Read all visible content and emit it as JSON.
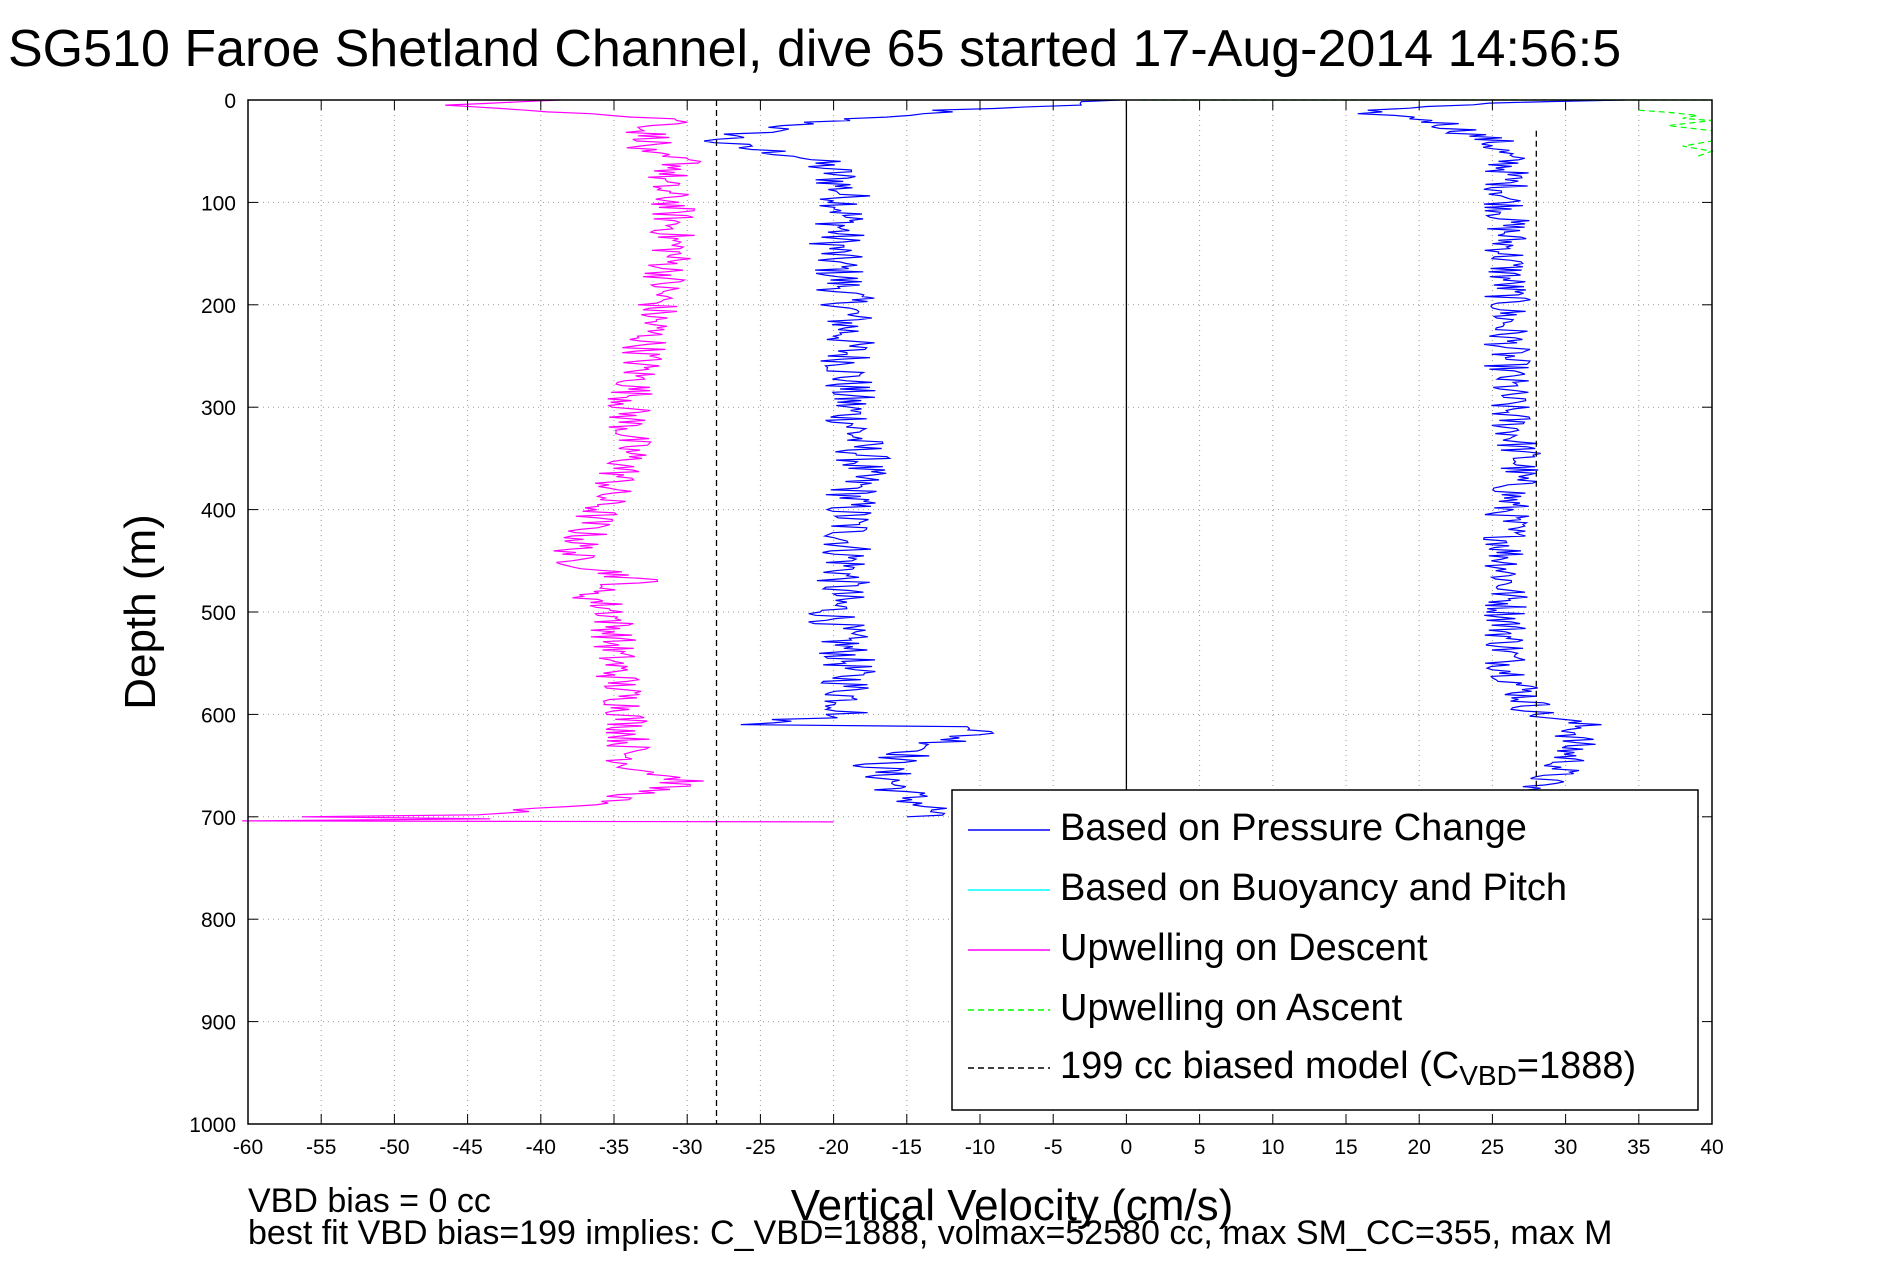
{
  "chart_data": {
    "type": "line",
    "title": "SG510 Faroe Shetland Channel, dive 65 started 17-Aug-2014 14:56:5",
    "xlabel": "Vertical Velocity (cm/s)",
    "ylabel": "Depth (m)",
    "xlim": [
      -60,
      40
    ],
    "ylim": [
      1000,
      0
    ],
    "y_reversed": true,
    "grid": true,
    "x_ticks": [
      -60,
      -55,
      -50,
      -45,
      -40,
      -35,
      -30,
      -25,
      -20,
      -15,
      -10,
      -5,
      0,
      5,
      10,
      15,
      20,
      25,
      30,
      35,
      40
    ],
    "y_ticks": [
      0,
      100,
      200,
      300,
      400,
      500,
      600,
      700,
      800,
      900,
      1000
    ],
    "legend_position": "bottom-right",
    "annotations": [
      "VBD bias = 0 cc",
      "best fit VBD bias=199 implies: C_VBD=1888, volmax=52580 cc, max SM_CC=355, max M"
    ],
    "legend": {
      "entries": [
        {
          "text": "Based on Pressure Change",
          "color": "#0000ff",
          "dash": "none"
        },
        {
          "text": "Based on Buoyancy and Pitch",
          "color": "#00ffff",
          "dash": "none"
        },
        {
          "text": "Upwelling on Descent",
          "color": "#ff00ff",
          "dash": "none"
        },
        {
          "text": "Upwelling on Ascent",
          "color": "#00ff00",
          "dash": "dashed"
        }
      ],
      "model_entry": {
        "prefix": "199 cc biased model (C",
        "subscript": "VBD",
        "suffix": "=1888)",
        "color": "#000000",
        "dash": "dashed"
      }
    },
    "series": [
      {
        "name": "Based on Pressure Change",
        "color": "#0000ff",
        "dash": "none",
        "depth": [
          0,
          5,
          10,
          20,
          30,
          40,
          45,
          55,
          70,
          100,
          150,
          200,
          250,
          300,
          350,
          400,
          450,
          500,
          550,
          600,
          610,
          612,
          650,
          680,
          695,
          700
        ],
        "velocity": [
          -1,
          -5,
          -12,
          -20,
          -25,
          -28,
          -27,
          -22,
          -20,
          -19,
          -20,
          -19,
          -19,
          -19,
          -18,
          -19,
          -19,
          -20,
          -19,
          -19,
          -26,
          -9,
          -17,
          -15,
          -13,
          -15
        ],
        "noise": 1.2
      },
      {
        "name": "Based on Pressure Change (ascent)",
        "color": "#0000ff",
        "dash": "none",
        "depth": [
          0,
          3,
          8,
          10,
          20,
          40,
          60,
          100,
          150,
          200,
          250,
          300,
          350,
          400,
          450,
          500,
          550,
          600,
          610,
          650,
          680,
          700
        ],
        "velocity": [
          34,
          25,
          18,
          15,
          21,
          25,
          26,
          26,
          26,
          26,
          26,
          26,
          27,
          26,
          26,
          26,
          26,
          28,
          31,
          30,
          27,
          26
        ],
        "noise": 1.0
      },
      {
        "name": "Upwelling on Descent",
        "color": "#ff00ff",
        "dash": "none",
        "depth": [
          0,
          5,
          10,
          20,
          30,
          40,
          50,
          60,
          80,
          100,
          150,
          200,
          250,
          300,
          350,
          400,
          450,
          470,
          480,
          500,
          550,
          600,
          650,
          665,
          680,
          690,
          698,
          700,
          702,
          704,
          705
        ],
        "velocity": [
          -40,
          -45,
          -40,
          -30,
          -33,
          -32,
          -34,
          -30,
          -32,
          -31,
          -31,
          -32,
          -33,
          -34,
          -34,
          -36,
          -38,
          -33,
          -37,
          -35,
          -35,
          -34,
          -34,
          -30,
          -34,
          -38,
          -45,
          -55,
          -45,
          -60,
          -20
        ],
        "noise": 1.0
      },
      {
        "name": "Upwelling on Ascent",
        "color": "#00ff00",
        "dash": "dashed",
        "depth": [
          0,
          0,
          0,
          0
        ],
        "velocity": [
          1,
          15,
          30,
          40
        ]
      },
      {
        "name": "Upwelling on Ascent (surface)",
        "color": "#00ff00",
        "dash": "dashed",
        "depth": [
          10,
          12,
          15,
          18,
          20,
          25,
          30,
          40,
          45,
          50,
          55
        ],
        "velocity": [
          35,
          37,
          39,
          38,
          40,
          37,
          40,
          40,
          38,
          40,
          39
        ]
      },
      {
        "name": "199 cc biased model (descent)",
        "color": "#000000",
        "dash": "dashed",
        "depth": [
          0,
          1000
        ],
        "velocity": [
          -28,
          -28
        ]
      },
      {
        "name": "199 cc biased model (ascent)",
        "color": "#000000",
        "dash": "dashed",
        "depth": [
          30,
          700
        ],
        "velocity": [
          28,
          28
        ]
      },
      {
        "name": "zero line",
        "color": "#000000",
        "dash": "none",
        "depth": [
          0,
          700
        ],
        "velocity": [
          0,
          0
        ]
      }
    ]
  }
}
